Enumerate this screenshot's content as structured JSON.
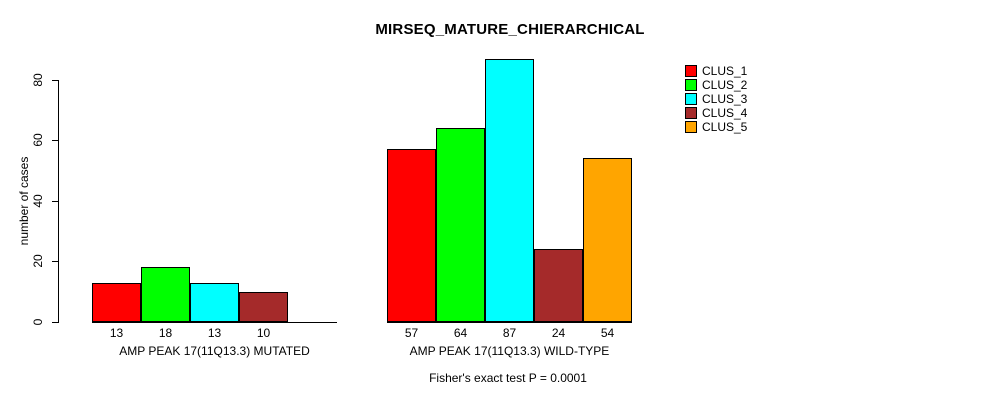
{
  "chart_data": {
    "type": "bar",
    "title": "MIRSEQ_MATURE_CHIERARCHICAL",
    "ylabel": "number of cases",
    "footnote": "Fisher's exact test P = 0.0001",
    "ylim": [
      0,
      88
    ],
    "yticks": [
      0,
      20,
      40,
      60,
      80
    ],
    "grid": false,
    "bar_value_labels_shown": true,
    "legend": {
      "position": "right",
      "entries": [
        {
          "label": "CLUS_1",
          "color": "#FF0000"
        },
        {
          "label": "CLUS_2",
          "color": "#00FF00"
        },
        {
          "label": "CLUS_3",
          "color": "#00FFFF"
        },
        {
          "label": "CLUS_4",
          "color": "#A52A2A"
        },
        {
          "label": "CLUS_5",
          "color": "#FFA500"
        }
      ]
    },
    "groups": [
      {
        "label": "AMP PEAK 17(11Q13.3) MUTATED",
        "values": [
          13,
          18,
          13,
          10,
          null
        ]
      },
      {
        "label": "AMP PEAK 17(11Q13.3) WILD-TYPE",
        "values": [
          57,
          64,
          87,
          24,
          54
        ]
      }
    ],
    "colors": {
      "axis": "#000000",
      "background": "#FFFFFF"
    }
  }
}
